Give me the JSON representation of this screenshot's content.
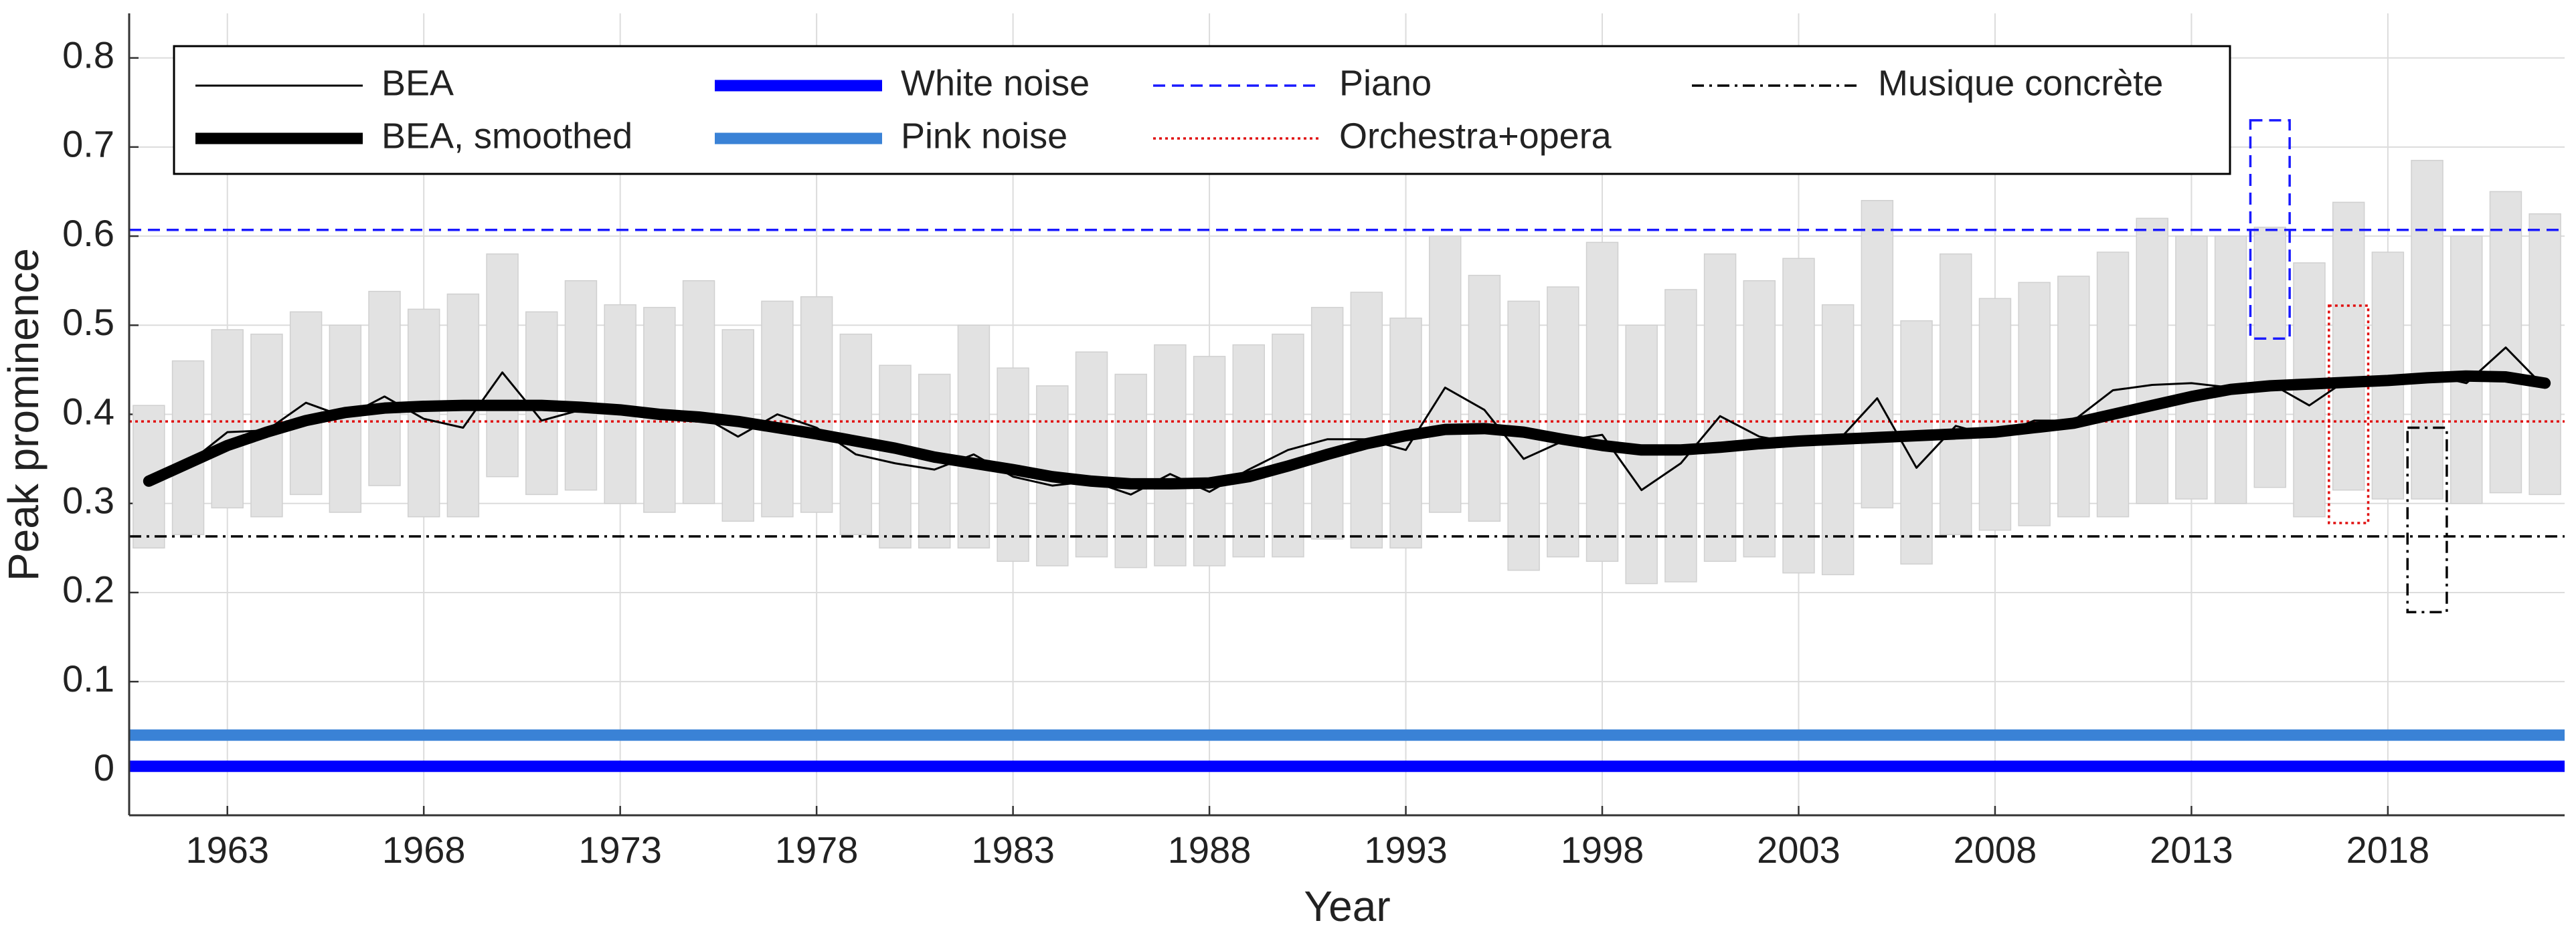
{
  "chart_data": {
    "type": "line",
    "x_label": "Year",
    "y_label": "Peak prominence",
    "xlim": [
      1960.5,
      2022.5
    ],
    "ylim": [
      -0.05,
      0.85
    ],
    "xticks": [
      1963,
      1968,
      1973,
      1978,
      1983,
      1988,
      1993,
      1998,
      2003,
      2008,
      2013,
      2018
    ],
    "yticks": [
      0,
      0.1,
      0.2,
      0.3,
      0.4,
      0.5,
      0.6,
      0.7,
      0.8
    ],
    "grid": true,
    "x": [
      1961,
      1962,
      1963,
      1964,
      1965,
      1966,
      1967,
      1968,
      1969,
      1970,
      1971,
      1972,
      1973,
      1974,
      1975,
      1976,
      1977,
      1978,
      1979,
      1980,
      1981,
      1982,
      1983,
      1984,
      1985,
      1986,
      1987,
      1988,
      1989,
      1990,
      1991,
      1992,
      1993,
      1994,
      1995,
      1996,
      1997,
      1998,
      1999,
      2000,
      2001,
      2002,
      2003,
      2004,
      2005,
      2006,
      2007,
      2008,
      2009,
      2010,
      2011,
      2012,
      2013,
      2014,
      2015,
      2016,
      2017,
      2018,
      2019,
      2020,
      2021,
      2022
    ],
    "range_bars": {
      "color": "#e2e2e2",
      "low": [
        0.25,
        0.265,
        0.295,
        0.285,
        0.31,
        0.29,
        0.32,
        0.285,
        0.285,
        0.33,
        0.31,
        0.315,
        0.3,
        0.29,
        0.3,
        0.28,
        0.285,
        0.29,
        0.265,
        0.25,
        0.25,
        0.25,
        0.235,
        0.23,
        0.24,
        0.228,
        0.23,
        0.23,
        0.24,
        0.24,
        0.26,
        0.25,
        0.25,
        0.29,
        0.28,
        0.225,
        0.24,
        0.235,
        0.21,
        0.212,
        0.235,
        0.24,
        0.222,
        0.22,
        0.295,
        0.232,
        0.265,
        0.27,
        0.275,
        0.285,
        0.285,
        0.3,
        0.305,
        0.3,
        0.318,
        0.285,
        0.315,
        0.305,
        0.305,
        0.3,
        0.312,
        0.31
      ],
      "high": [
        0.41,
        0.46,
        0.495,
        0.49,
        0.515,
        0.5,
        0.538,
        0.518,
        0.535,
        0.58,
        0.515,
        0.55,
        0.523,
        0.52,
        0.55,
        0.495,
        0.527,
        0.532,
        0.49,
        0.455,
        0.445,
        0.5,
        0.452,
        0.432,
        0.47,
        0.445,
        0.478,
        0.465,
        0.478,
        0.49,
        0.52,
        0.537,
        0.508,
        0.6,
        0.556,
        0.527,
        0.543,
        0.593,
        0.5,
        0.54,
        0.58,
        0.55,
        0.575,
        0.523,
        0.64,
        0.505,
        0.58,
        0.53,
        0.548,
        0.555,
        0.582,
        0.62,
        0.6,
        0.6,
        0.61,
        0.57,
        0.638,
        0.582,
        0.685,
        0.6,
        0.65,
        0.625
      ]
    },
    "series": [
      {
        "name": "BEA",
        "color": "#000000",
        "style": "thin",
        "values": [
          0.325,
          0.345,
          0.38,
          0.382,
          0.413,
          0.397,
          0.42,
          0.395,
          0.385,
          0.447,
          0.393,
          0.405,
          0.405,
          0.395,
          0.4,
          0.375,
          0.4,
          0.385,
          0.355,
          0.345,
          0.338,
          0.355,
          0.33,
          0.32,
          0.325,
          0.31,
          0.333,
          0.313,
          0.338,
          0.36,
          0.372,
          0.372,
          0.36,
          0.43,
          0.405,
          0.35,
          0.37,
          0.377,
          0.315,
          0.345,
          0.398,
          0.375,
          0.367,
          0.37,
          0.418,
          0.34,
          0.387,
          0.375,
          0.393,
          0.393,
          0.427,
          0.433,
          0.435,
          0.43,
          0.435,
          0.41,
          0.44,
          0.44,
          0.445,
          0.435,
          0.475,
          0.43
        ]
      },
      {
        "name": "BEA, smoothed",
        "color": "#000000",
        "style": "thick",
        "values": [
          0.325,
          0.345,
          0.365,
          0.38,
          0.393,
          0.402,
          0.407,
          0.409,
          0.41,
          0.41,
          0.41,
          0.408,
          0.405,
          0.4,
          0.397,
          0.392,
          0.385,
          0.378,
          0.37,
          0.362,
          0.352,
          0.345,
          0.338,
          0.33,
          0.325,
          0.322,
          0.322,
          0.323,
          0.33,
          0.342,
          0.355,
          0.367,
          0.376,
          0.383,
          0.384,
          0.38,
          0.372,
          0.365,
          0.36,
          0.36,
          0.363,
          0.367,
          0.37,
          0.372,
          0.374,
          0.376,
          0.378,
          0.38,
          0.385,
          0.39,
          0.4,
          0.41,
          0.42,
          0.428,
          0.432,
          0.434,
          0.436,
          0.438,
          0.441,
          0.443,
          0.442,
          0.435
        ]
      }
    ],
    "reference_lines": [
      {
        "name": "White noise",
        "color": "#0000ff",
        "style": "thick",
        "value": 0.005
      },
      {
        "name": "Pink noise",
        "color": "#3a82d6",
        "style": "thick",
        "value": 0.04
      },
      {
        "name": "Piano",
        "color": "#1a1aff",
        "style": "dashed",
        "value": 0.607,
        "range_x": 2015,
        "range": [
          0.485,
          0.73
        ]
      },
      {
        "name": "Orchestra+opera",
        "color": "#e01010",
        "style": "dotted",
        "value": 0.392,
        "range_x": 2017,
        "range": [
          0.278,
          0.522
        ]
      },
      {
        "name": "Musique concrète",
        "color": "#000000",
        "style": "dashdot",
        "value": 0.263,
        "range_x": 2019,
        "range": [
          0.178,
          0.385
        ]
      }
    ]
  }
}
